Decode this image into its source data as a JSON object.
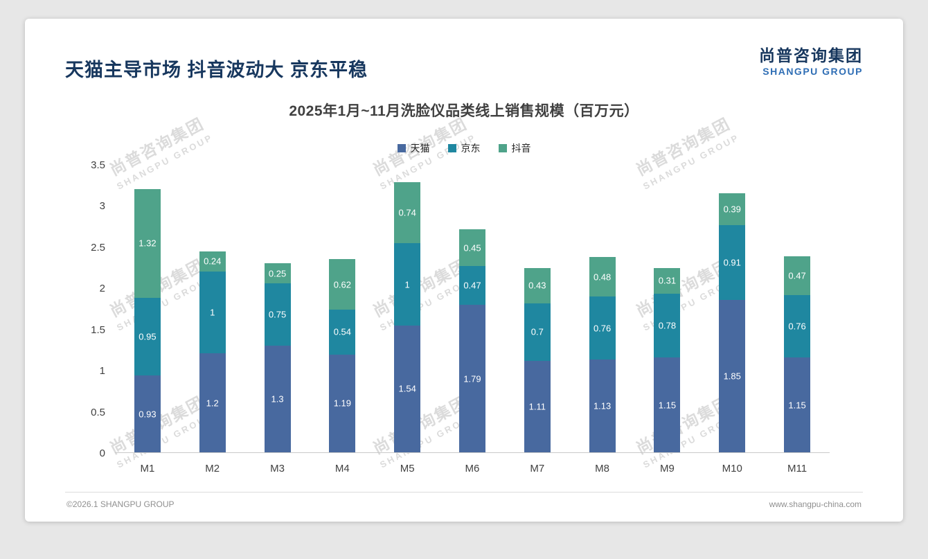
{
  "page": {
    "title": "天猫主导市场 抖音波动大 京东平稳",
    "logo": {
      "cn": "尚普咨询集团",
      "en": "SHANGPU GROUP"
    },
    "watermark": {
      "cn": "尚普咨询集团",
      "en": "SHANGPU GROUP"
    },
    "footer": {
      "left": "©2026.1 SHANGPU GROUP",
      "right": "www.shangpu-china.com"
    }
  },
  "chart_data": {
    "type": "bar",
    "stacked": true,
    "title": "2025年1月~11月洗脸仪品类线上销售规模（百万元）",
    "categories": [
      "M1",
      "M2",
      "M3",
      "M4",
      "M5",
      "M6",
      "M7",
      "M8",
      "M9",
      "M10",
      "M11"
    ],
    "series": [
      {
        "name": "天猫",
        "color": "#48699f",
        "values": [
          0.93,
          1.2,
          1.3,
          1.19,
          1.54,
          1.79,
          1.11,
          1.13,
          1.15,
          1.85,
          1.15
        ]
      },
      {
        "name": "京东",
        "color": "#1f87a0",
        "values": [
          0.95,
          1,
          0.75,
          0.54,
          1,
          0.47,
          0.7,
          0.76,
          0.78,
          0.91,
          0.76
        ]
      },
      {
        "name": "抖音",
        "color": "#4fa38a",
        "values": [
          1.32,
          0.24,
          0.25,
          0.62,
          0.74,
          0.45,
          0.43,
          0.48,
          0.31,
          0.39,
          0.47
        ]
      }
    ],
    "y_ticks": [
      0,
      0.5,
      1,
      1.5,
      2,
      2.5,
      3,
      3.5
    ],
    "ylim": [
      0,
      3.5
    ],
    "legend_position": "top",
    "grid": false
  }
}
